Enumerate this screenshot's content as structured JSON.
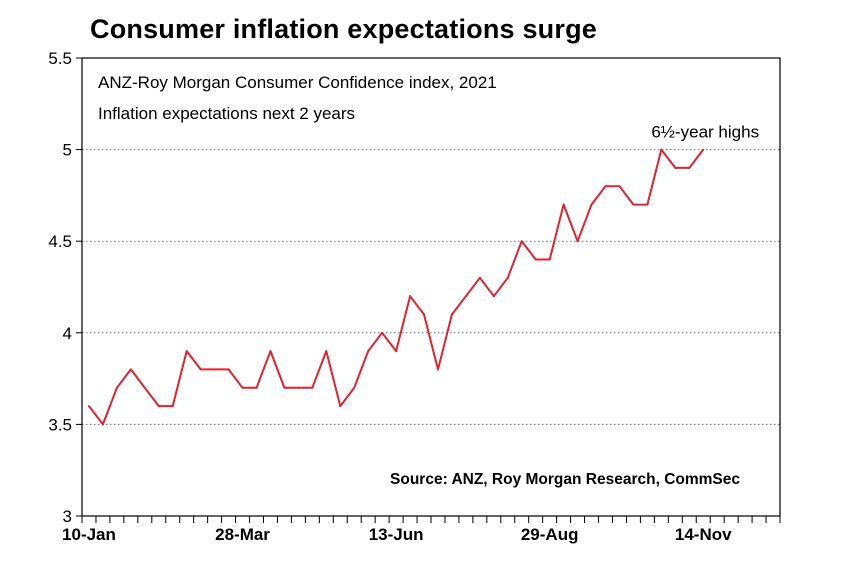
{
  "chart_data": {
    "type": "line",
    "title": "Consumer inflation expectations surge",
    "subtitle_lines": [
      "ANZ-Roy Morgan Consumer Confidence index, 2021",
      "Inflation expectations next 2 years"
    ],
    "annotation": "6½-year highs",
    "source": "Source: ANZ, Roy Morgan Research, CommSec",
    "xlabel": "",
    "ylabel": "",
    "ylim": [
      3,
      5.5
    ],
    "y_ticks": [
      3,
      3.5,
      4,
      4.5,
      5,
      5.5
    ],
    "y_tick_labels": [
      "3",
      "3.5",
      "4",
      "4.5",
      "5",
      "5.5"
    ],
    "x_tick_labels": [
      "10-Jan",
      "28-Mar",
      "13-Jun",
      "29-Aug",
      "14-Nov"
    ],
    "x_tick_label_index": [
      0,
      11,
      22,
      33,
      44
    ],
    "x_tick_count": 50,
    "grid": "horizontal-dotted",
    "line_color": "#e0232d",
    "series": [
      {
        "name": "Inflation expectations next 2 years",
        "values": [
          3.6,
          3.5,
          3.7,
          3.8,
          3.7,
          3.6,
          3.6,
          3.9,
          3.8,
          3.8,
          3.8,
          3.7,
          3.7,
          3.9,
          3.7,
          3.7,
          3.7,
          3.9,
          3.6,
          3.7,
          3.9,
          4.0,
          3.9,
          4.2,
          4.1,
          3.8,
          4.1,
          4.2,
          4.3,
          4.2,
          4.3,
          4.5,
          4.4,
          4.4,
          4.7,
          4.5,
          4.7,
          4.8,
          4.8,
          4.7,
          4.7,
          5.0,
          4.9,
          4.9,
          5.0
        ]
      }
    ]
  }
}
